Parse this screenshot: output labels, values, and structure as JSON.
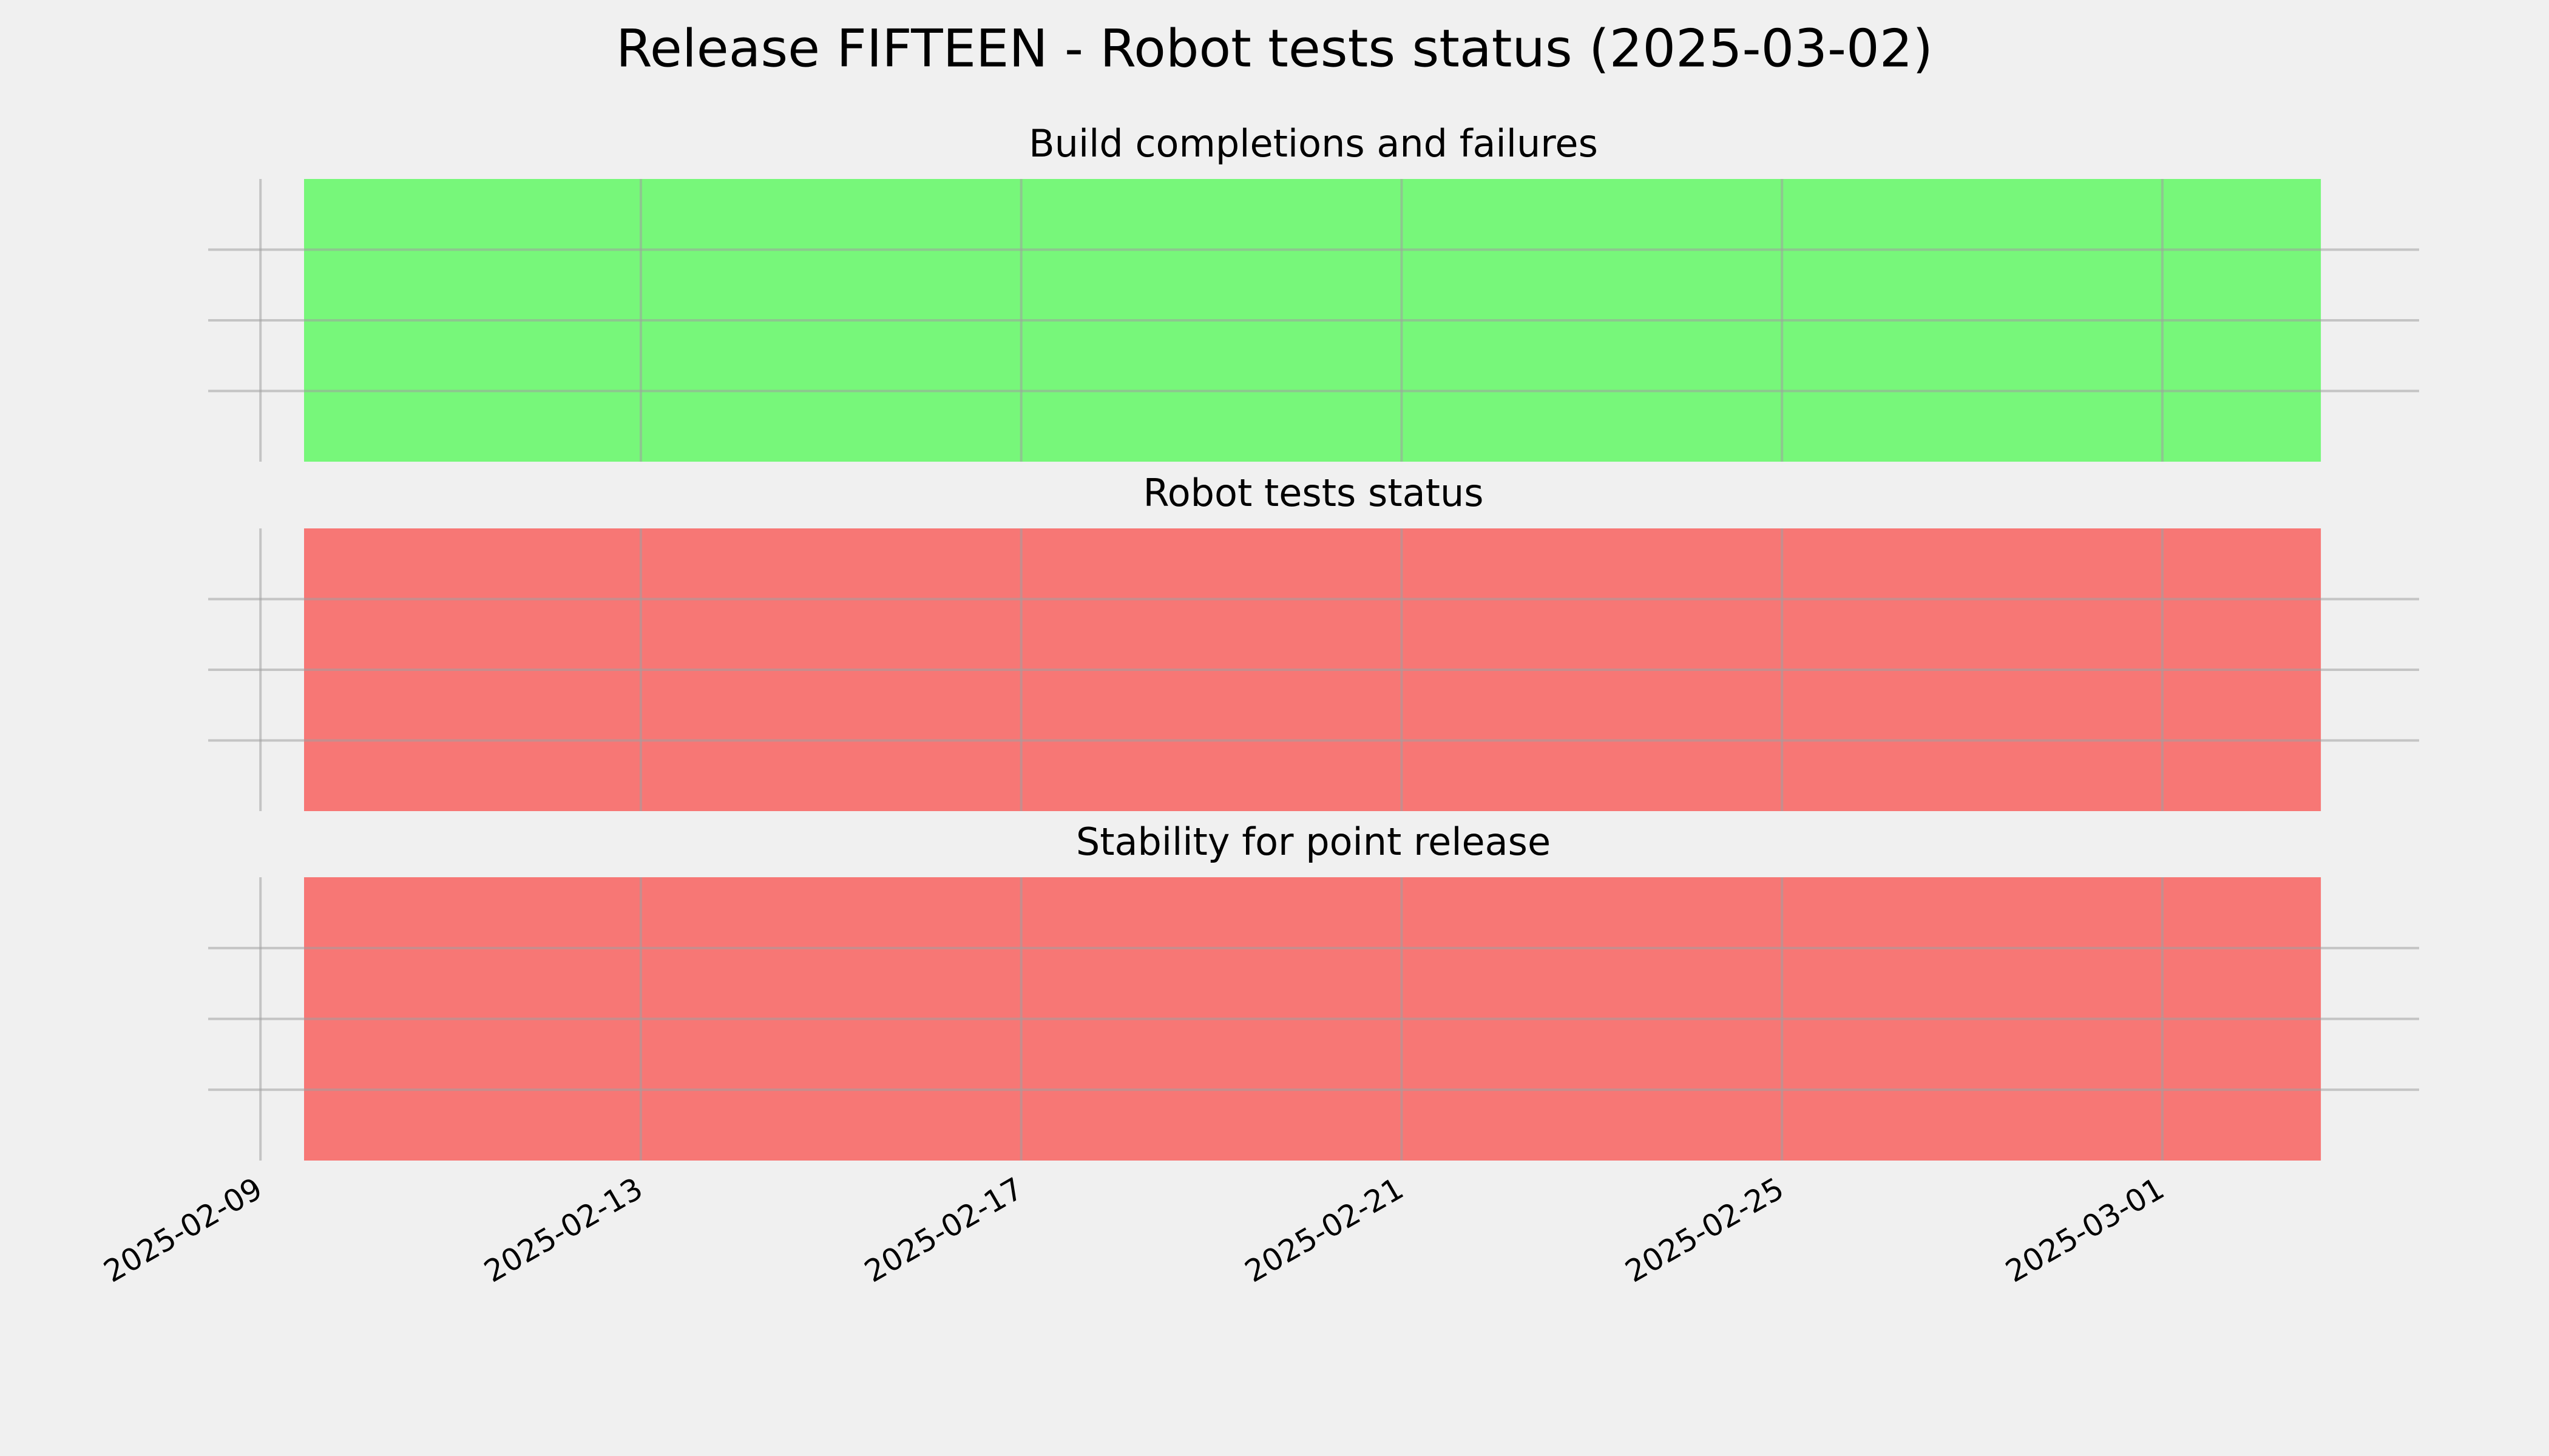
{
  "chart_data": [
    {
      "type": "timeline",
      "suptitle": "Release FIFTEEN - Robot tests status (2025-03-02)",
      "title": "Build completions and failures",
      "spans": [
        {
          "start": "2025-02-09T11:00",
          "end": "2025-03-02T16:00",
          "color": "#77f77a"
        }
      ],
      "xlim": [
        "2025-02-08T10:48",
        "2025-03-03T16:48"
      ],
      "xticks": [
        "2025-02-09",
        "2025-02-13",
        "2025-02-17",
        "2025-02-21",
        "2025-02-25",
        "2025-03-01"
      ],
      "ylim": [
        0,
        1
      ],
      "yticks": [
        0.25,
        0.5,
        0.75
      ],
      "show_ytick_labels": false,
      "grid": true
    },
    {
      "type": "timeline",
      "title": "Robot tests status",
      "spans": [
        {
          "start": "2025-02-09T11:00",
          "end": "2025-03-02T16:00",
          "color": "#f77775"
        }
      ],
      "xlim": [
        "2025-02-08T10:48",
        "2025-03-03T16:48"
      ],
      "xticks": [
        "2025-02-09",
        "2025-02-13",
        "2025-02-17",
        "2025-02-21",
        "2025-02-25",
        "2025-03-01"
      ],
      "ylim": [
        0,
        1
      ],
      "yticks": [
        0.25,
        0.5,
        0.75
      ],
      "show_ytick_labels": false,
      "grid": true
    },
    {
      "type": "timeline",
      "title": "Stability for point release",
      "spans": [
        {
          "start": "2025-02-09T11:00",
          "end": "2025-03-02T16:00",
          "color": "#f77775"
        }
      ],
      "xlim": [
        "2025-02-08T10:48",
        "2025-03-03T16:48"
      ],
      "xticks": [
        "2025-02-09",
        "2025-02-13",
        "2025-02-17",
        "2025-02-21",
        "2025-02-25",
        "2025-03-01"
      ],
      "ylim": [
        0,
        1
      ],
      "yticks": [
        0.25,
        0.5,
        0.75
      ],
      "show_ytick_labels": false,
      "grid": true
    }
  ]
}
